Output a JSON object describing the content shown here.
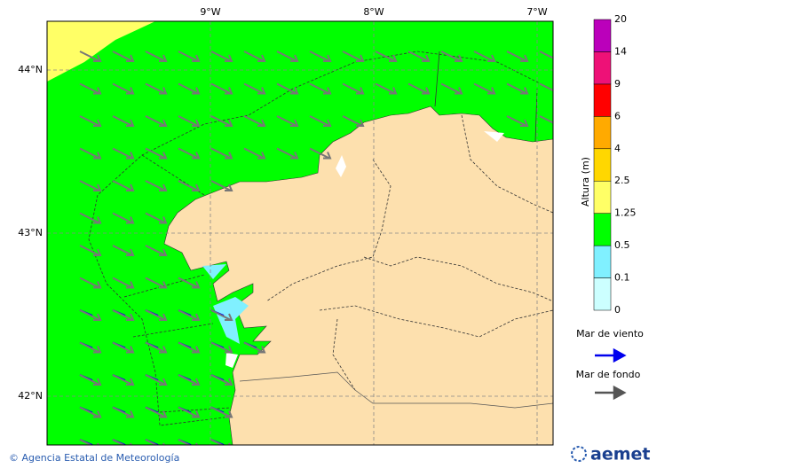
{
  "map": {
    "lon_labels": [
      "9°W",
      "8°W",
      "7°W"
    ],
    "lat_labels": [
      "44°N",
      "43°N",
      "42°N"
    ]
  },
  "colorbar": {
    "title": "Altura (m)",
    "levels": [
      0,
      0.1,
      0.5,
      1.25,
      2.5,
      4,
      6,
      9,
      14,
      20
    ],
    "colors": [
      "#ccffff",
      "#80f0ff",
      "#00ff00",
      "#ffff66",
      "#ffd700",
      "#ffaa00",
      "#ff0000",
      "#ee1177",
      "#bb00bb"
    ]
  },
  "legend": {
    "wind_sea": "Mar de viento",
    "swell": "Mar de fondo"
  },
  "footer": {
    "credit": "© Agencia Estatal de Meteorología",
    "logo": "aemet"
  }
}
